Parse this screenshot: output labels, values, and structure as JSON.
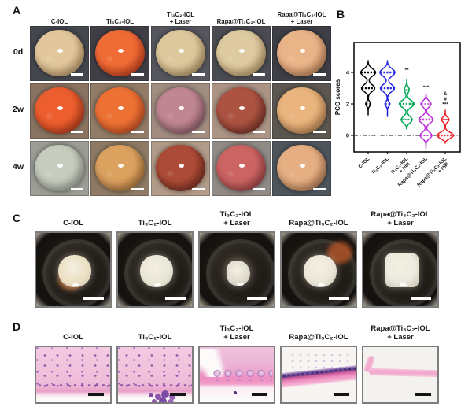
{
  "panel_a": {
    "label": "A",
    "col_headers": [
      "C-IOL",
      "Ti₃C₂-IOL",
      "Ti₃C₂-IOL\n+ Laser",
      "Rapa@Ti₃C₂-IOL",
      "Rapa@Ti₃C₂-IOL\n+ Laser"
    ],
    "row_labels": [
      "0d",
      "2w",
      "4w"
    ],
    "scalebar_color": "#ffffff",
    "cells": [
      {
        "row": "0d",
        "col": "C-IOL",
        "bg": "#45474f",
        "lens": [
          "#e3c79c",
          "#c6a06a"
        ]
      },
      {
        "row": "0d",
        "col": "Ti₃C₂-IOL",
        "bg": "#403f46",
        "lens": [
          "#f06c35",
          "#d4401d"
        ]
      },
      {
        "row": "0d",
        "col": "Ti₃C₂-IOL + Laser",
        "bg": "#56575e",
        "lens": [
          "#ddc89d",
          "#c2a068"
        ]
      },
      {
        "row": "0d",
        "col": "Rapa@Ti₃C₂-IOL",
        "bg": "#4b4c53",
        "lens": [
          "#decaa0",
          "#c7a26c"
        ]
      },
      {
        "row": "0d",
        "col": "Rapa@Ti₃C₂-IOL + Laser",
        "bg": "#3e3f46",
        "lens": [
          "#eab489",
          "#cd8a58"
        ]
      },
      {
        "row": "2w",
        "col": "C-IOL",
        "bg": "#8b7361",
        "lens": [
          "#ec5e2e",
          "#c23b1a"
        ]
      },
      {
        "row": "2w",
        "col": "Ti₃C₂-IOL",
        "bg": "#937c67",
        "lens": [
          "#ee7134",
          "#d65427"
        ]
      },
      {
        "row": "2w",
        "col": "Ti₃C₂-IOL + Laser",
        "bg": "#a28d81",
        "lens": [
          "#c08692",
          "#925f6d"
        ]
      },
      {
        "row": "2w",
        "col": "Rapa@Ti₃C₂-IOL",
        "bg": "#ac9485",
        "lens": [
          "#ad5342",
          "#7c3325"
        ]
      },
      {
        "row": "2w",
        "col": "Rapa@Ti₃C₂-IOL + Laser",
        "bg": "#5c5750",
        "lens": [
          "#e9b47d",
          "#c78a52"
        ]
      },
      {
        "row": "4w",
        "col": "C-IOL",
        "bg": "#9c9d96",
        "lens": [
          "#c6cdbe",
          "#a5ada1"
        ]
      },
      {
        "row": "4w",
        "col": "Ti₃C₂-IOL",
        "bg": "#8f7b65",
        "lens": [
          "#dba15f",
          "#b5793c"
        ]
      },
      {
        "row": "4w",
        "col": "Ti₃C₂-IOL + Laser",
        "bg": "#b39b89",
        "lens": [
          "#ac4b37",
          "#7b2f1f"
        ]
      },
      {
        "row": "4w",
        "col": "Rapa@Ti₃C₂-IOL",
        "bg": "#908b86",
        "lens": [
          "#cb6463",
          "#a64546"
        ]
      },
      {
        "row": "4w",
        "col": "Rapa@Ti₃C₂-IOL + Laser",
        "bg": "#4f555d",
        "lens": [
          "#e5af83",
          "#bd7f53"
        ]
      }
    ]
  },
  "panel_b": {
    "label": "B",
    "chart_data": {
      "type": "violin",
      "title": "",
      "ylabel": "PCO scores",
      "yticks": [
        0,
        2,
        4
      ],
      "ylim": [
        -1.05,
        5.9
      ],
      "zero_line_style": "dash-dot",
      "categories": [
        "C-IOL",
        "Ti₃C₂-IOL",
        "Ti₃C₂-IOL\n+ NIR",
        "Rapa@Ti₃C₂-IOL",
        "Rapa@Ti₃C₂-IOL\n+ NIR"
      ],
      "series": [
        {
          "name": "C-IOL",
          "color": "#000000",
          "range": [
            1.3,
            4.75
          ],
          "bulges": [
            [
              4,
              9.5,
              0.32
            ],
            [
              3,
              8.5,
              0.3
            ],
            [
              2,
              3.2,
              0.2
            ]
          ],
          "lines": [
            {
              "v": 4,
              "w": 9,
              "t": 2.4
            },
            {
              "v": 3,
              "w": 8,
              "t": 2.4
            },
            {
              "v": 2,
              "w": 2.8,
              "t": 1.4
            }
          ],
          "annotation": null
        },
        {
          "name": "Ti₃C₂-IOL",
          "color": "#2323e6",
          "range": [
            1.2,
            4.75
          ],
          "bulges": [
            [
              4,
              9.5,
              0.33
            ],
            [
              3,
              9.0,
              0.31
            ],
            [
              2,
              3.2,
              0.2
            ]
          ],
          "lines": [
            {
              "v": 4,
              "w": 9,
              "t": 2.4
            },
            {
              "v": 3,
              "w": 8.5,
              "t": 2.4
            },
            {
              "v": 2,
              "w": 2.8,
              "t": 1.4
            }
          ],
          "annotation": null
        },
        {
          "name": "Ti₃C₂-IOL + NIR",
          "color": "#00a651",
          "range": [
            0.4,
            3.55
          ],
          "bulges": [
            [
              2.9,
              3.2,
              0.25
            ],
            [
              2,
              9.5,
              0.3
            ],
            [
              1,
              7.0,
              0.28
            ]
          ],
          "lines": [
            {
              "v": 2,
              "w": 9,
              "t": 2.4
            },
            {
              "v": 1,
              "w": 6.5,
              "t": 1.8
            },
            {
              "v": 2.9,
              "w": 2.4,
              "t": 1.2
            }
          ],
          "annotation": {
            "lines": [
              "**"
            ],
            "v": 4.05
          }
        },
        {
          "name": "Rapa@Ti₃C₂-IOL",
          "color": "#bb2fd8",
          "range": [
            -0.85,
            2.65
          ],
          "bulges": [
            [
              2,
              6.5,
              0.27
            ],
            [
              1,
              9.0,
              0.3
            ],
            [
              0,
              7.5,
              0.28
            ]
          ],
          "lines": [
            {
              "v": 2,
              "w": 6,
              "t": 1.6
            },
            {
              "v": 1,
              "w": 8.5,
              "t": 2.4
            },
            {
              "v": 0,
              "w": 7,
              "t": 1.8
            }
          ],
          "annotation": {
            "lines": [
              "***"
            ],
            "v": 2.95
          }
        },
        {
          "name": "Rapa@Ti₃C₂-IOL + NIR",
          "color": "#ed2024",
          "range": [
            -0.5,
            1.6
          ],
          "bulges": [
            [
              1,
              4.8,
              0.22
            ],
            [
              0,
              10.5,
              0.26
            ]
          ],
          "lines": [
            {
              "v": 1,
              "w": 4.2,
              "t": 1.5,
              "solid": true
            },
            {
              "v": 0,
              "w": 9.5,
              "t": 2.4
            }
          ],
          "annotation": {
            "lines": [
              "&",
              "#",
              "***"
            ],
            "v": 2.55
          }
        }
      ]
    }
  },
  "panel_c": {
    "label": "C",
    "col_headers": [
      "C-IOL",
      "Ti₃C₂-IOL",
      "Ti₃C₂-IOL\n+ Laser",
      "Rapa@Ti₃C₂-IOL",
      "Rapa@Ti₃C₂-IOL\n+ Laser"
    ],
    "scalebar_color": "#ffffff",
    "cells": [
      {
        "col": "C-IOL",
        "lens": "#ecdfc2",
        "shape": "round",
        "accent": "#b5672f",
        "accent_pos": [
          "30%",
          "48%"
        ]
      },
      {
        "col": "Ti₃C₂-IOL",
        "lens": "#e9e6d6",
        "shape": "round",
        "accent": null
      },
      {
        "col": "Ti₃C₂-IOL + Laser",
        "lens": "#dfdccf",
        "shape": "small",
        "accent": null
      },
      {
        "col": "Rapa@Ti₃C₂-IOL",
        "lens": "#eae6d8",
        "shape": "round",
        "accent": "#c25a28",
        "accent_pos": [
          "62%",
          "12%"
        ]
      },
      {
        "col": "Rapa@Ti₃C₂-IOL + Laser",
        "lens": "#eceade",
        "shape": "square",
        "accent": null
      }
    ]
  },
  "panel_d": {
    "label": "D",
    "col_headers": [
      "C-IOL",
      "Ti₃C₂-IOL",
      "Ti₃C₂-IOL\n+ Laser",
      "Rapa@Ti₃C₂-IOL",
      "Rapa@Ti₃C₂-IOL\n+ Laser"
    ],
    "scalebar_color": "#141414",
    "cells": [
      {
        "col": "C-IOL",
        "variant": "dense"
      },
      {
        "col": "Ti₃C₂-IOL",
        "variant": "dense-cluster"
      },
      {
        "col": "Ti₃C₂-IOL + Laser",
        "variant": "mixed"
      },
      {
        "col": "Rapa@Ti₃C₂-IOL",
        "variant": "band"
      },
      {
        "col": "Rapa@Ti₃C₂-IOL + Laser",
        "variant": "thin"
      }
    ]
  }
}
